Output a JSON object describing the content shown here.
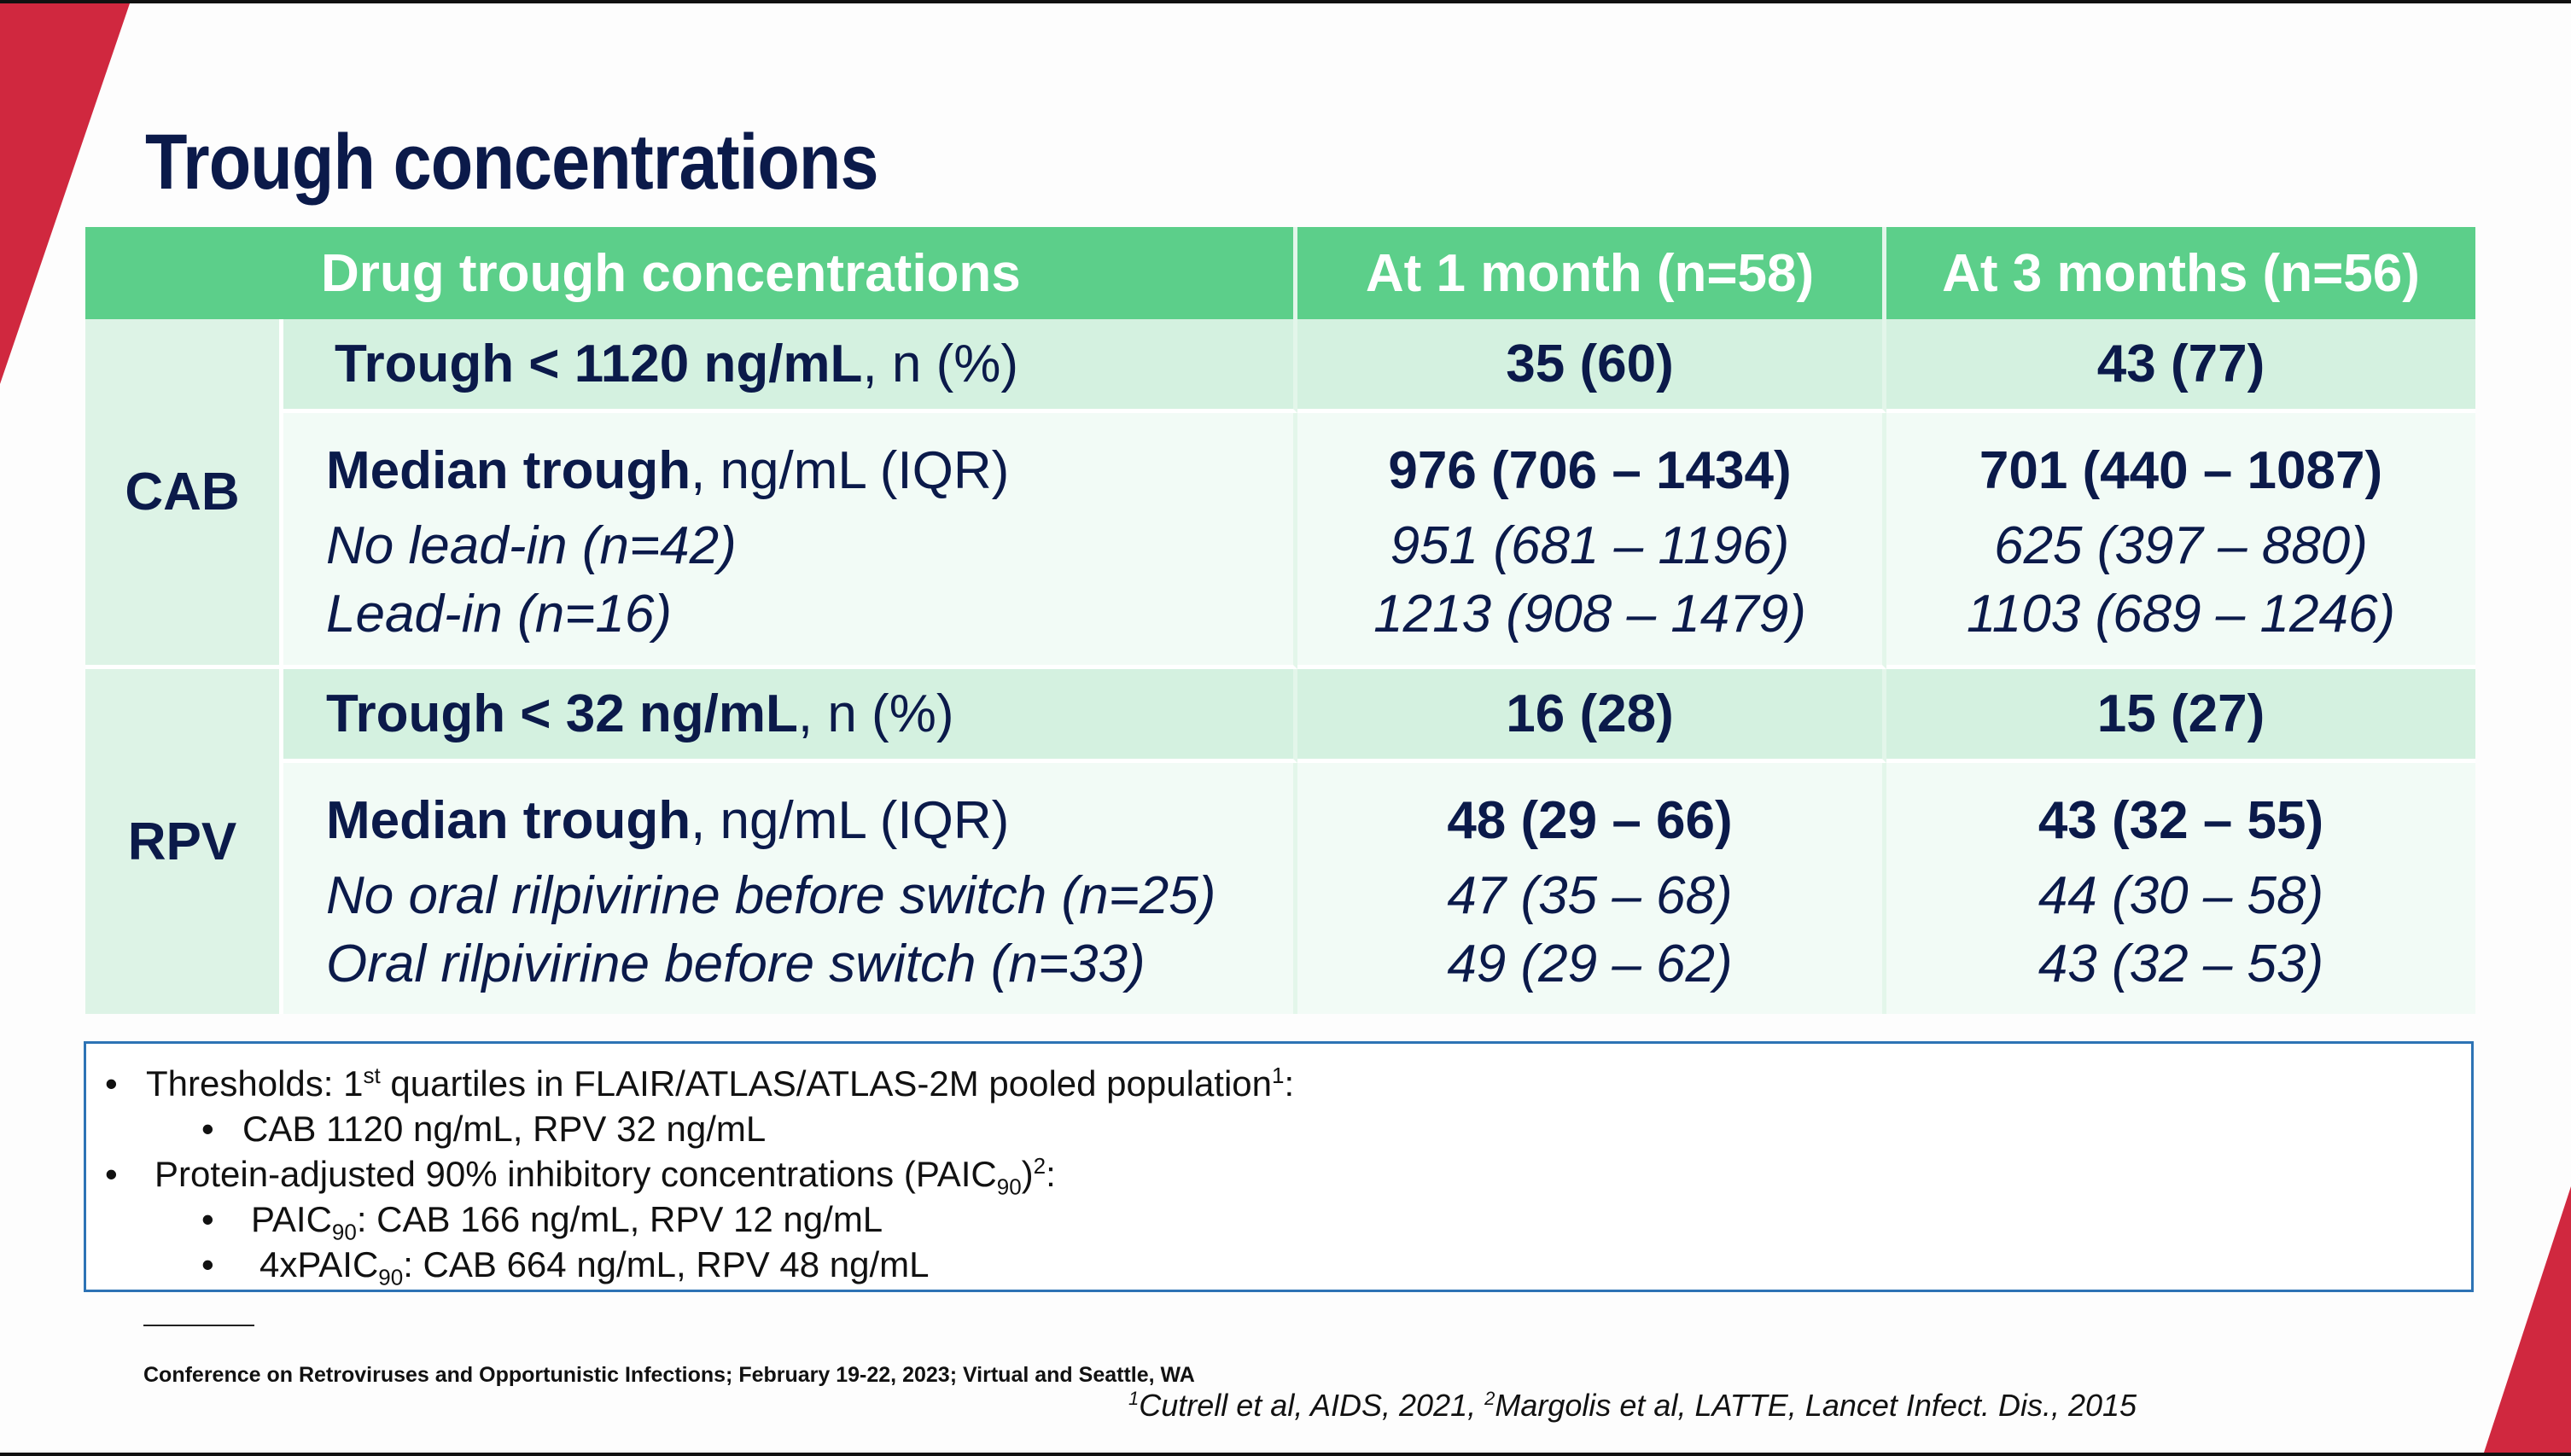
{
  "title": "Trough concentrations",
  "table": {
    "header": {
      "label": "Drug trough concentrations",
      "col1": "At 1 month (n=58)",
      "col2": "At 3 months (n=56)"
    },
    "groups": [
      {
        "name": "CAB",
        "threshold": {
          "bold": "Trough < 1120 ng/mL",
          "rest": ", n (%)",
          "col1": "35 (60)",
          "col2": "43 (77)"
        },
        "median": {
          "bold": "Median trough",
          "rest": ", ng/mL (IQR)",
          "col1": "976 (706 – 1434)",
          "col2": "701 (440 – 1087)",
          "subrows": [
            {
              "label": "No lead-in (n=42)",
              "col1": "951 (681 – 1196)",
              "col2": "625 (397 – 880)"
            },
            {
              "label": "Lead-in (n=16)",
              "col1": "1213 (908 – 1479)",
              "col2": "1103 (689 – 1246)"
            }
          ]
        }
      },
      {
        "name": "RPV",
        "threshold": {
          "bold": "Trough < 32 ng/mL",
          "rest": ", n (%)",
          "col1": "16 (28)",
          "col2": "15 (27)"
        },
        "median": {
          "bold": "Median trough",
          "rest": ", ng/mL (IQR)",
          "col1": "48 (29 – 66)",
          "col2": "43 (32 – 55)",
          "subrows": [
            {
              "label": "No oral rilpivirine before switch (n=25)",
              "col1": "47 (35 – 68)",
              "col2": "44 (30 – 58)"
            },
            {
              "label": "Oral rilpivirine before switch  (n=33)",
              "col1": "49 (29 – 62)",
              "col2": "43 (32 – 53)"
            }
          ]
        }
      }
    ]
  },
  "notes": {
    "bullet": "•",
    "thresholds": {
      "pre": "Thresholds: 1",
      "sup1": "st",
      "mid": " quartiles in FLAIR/ATLAS/ATLAS-2M pooled population",
      "sup2": "1",
      "post": ":"
    },
    "thresholds_sub": "CAB 1120 ng/mL, RPV 32 ng/mL",
    "paic": {
      "pre": "Protein-adjusted 90% inhibitory concentrations (PAIC",
      "sub": "90",
      "mid": ")",
      "sup": "2",
      "post": ":"
    },
    "paic_sub1": {
      "pre": "PAIC",
      "sub": "90",
      "post": ": CAB 166 ng/mL, RPV 12 ng/mL"
    },
    "paic_sub2": {
      "pre": "4xPAIC",
      "sub": "90",
      "post": ": CAB 664 ng/mL, RPV 48 ng/mL"
    }
  },
  "footer": {
    "conference": "Conference on Retroviruses and Opportunistic Infections; February 19-22, 2023; Virtual and Seattle, WA",
    "ref1_sup": "1",
    "ref1": "Cutrell et al, AIDS, 2021, ",
    "ref2_sup": "2",
    "ref2": "Margolis et al, LATTE, Lancet Infect. Dis., 2015"
  },
  "colors": {
    "accent_red": "#d0283f",
    "header_green": "#5ccf8a",
    "title_navy": "#0b1a4a",
    "notes_border": "#2d73b5"
  }
}
